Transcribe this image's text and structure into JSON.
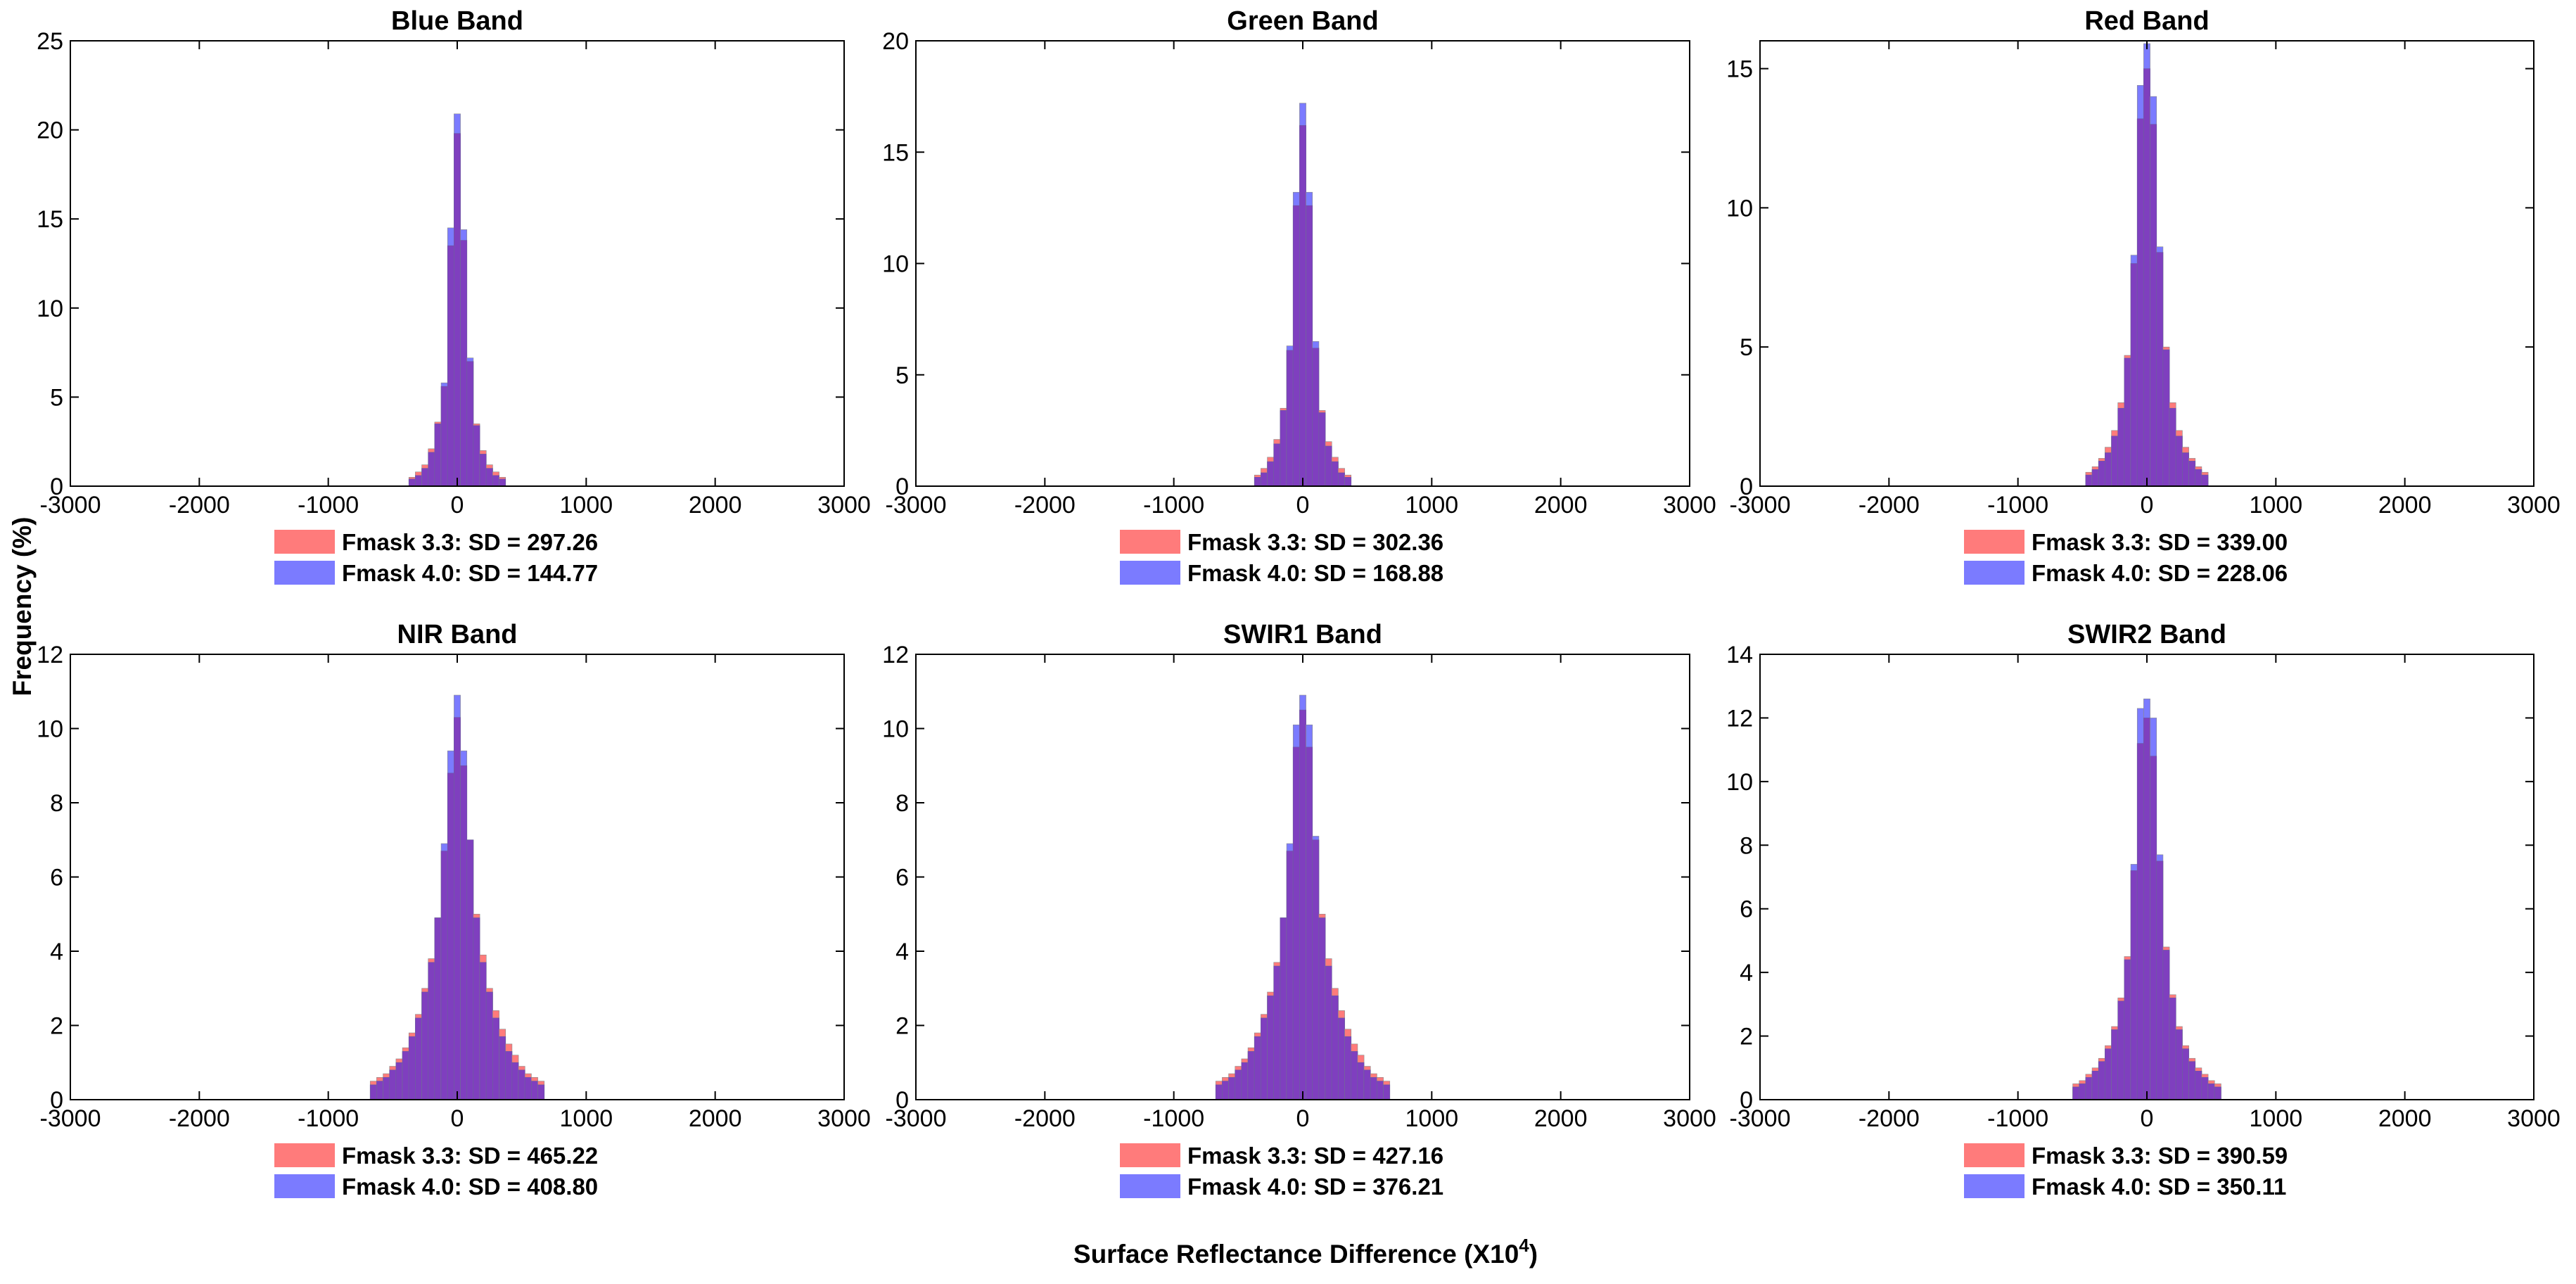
{
  "figure": {
    "ylabel": "Frequency (%)",
    "xlabel": "Surface Reflectance Difference (X10",
    "xlabel_sup": "4",
    "xlabel_close": ")"
  },
  "colors": {
    "fmask33": "#ff7b7b",
    "fmask40": "#7b7bff",
    "overlap": "#7f3fbf"
  },
  "chart_data": [
    {
      "type": "bar",
      "title": "Blue Band",
      "xlim": [
        -3000,
        3000
      ],
      "ylim": [
        0,
        25
      ],
      "xticks": [
        "-3000",
        "-2000",
        "-1000",
        "0",
        "1000",
        "2000",
        "3000"
      ],
      "yticks": [
        "0",
        "5",
        "10",
        "15",
        "20",
        "25"
      ],
      "legend": [
        "Fmask 3.3:  SD = 297.26",
        "Fmask 4.0:  SD = 144.77"
      ],
      "series": [
        {
          "name": "Fmask 3.3",
          "x": [
            -350,
            -300,
            -250,
            -200,
            -150,
            -100,
            -50,
            0,
            50,
            100,
            150,
            200,
            250,
            300,
            350
          ],
          "values": [
            0.5,
            0.8,
            1.2,
            2.1,
            3.6,
            5.6,
            13.5,
            19.8,
            13.8,
            7.0,
            3.5,
            2.0,
            1.2,
            0.8,
            0.5
          ]
        },
        {
          "name": "Fmask 4.0",
          "x": [
            -350,
            -300,
            -250,
            -200,
            -150,
            -100,
            -50,
            0,
            50,
            100,
            150,
            200,
            250,
            300,
            350
          ],
          "values": [
            0.4,
            0.6,
            1.0,
            1.9,
            3.5,
            5.8,
            14.5,
            20.9,
            14.4,
            7.2,
            3.4,
            1.8,
            1.0,
            0.6,
            0.4
          ]
        }
      ]
    },
    {
      "type": "bar",
      "title": "Green Band",
      "xlim": [
        -3000,
        3000
      ],
      "ylim": [
        0,
        20
      ],
      "xticks": [
        "-3000",
        "-2000",
        "-1000",
        "0",
        "1000",
        "2000",
        "3000"
      ],
      "yticks": [
        "0",
        "5",
        "10",
        "15",
        "20"
      ],
      "legend": [
        "Fmask 3.3:  SD = 302.36",
        "Fmask 4.0:  SD = 168.88"
      ],
      "series": [
        {
          "name": "Fmask 3.3",
          "x": [
            -350,
            -300,
            -250,
            -200,
            -150,
            -100,
            -50,
            0,
            50,
            100,
            150,
            200,
            250,
            300,
            350
          ],
          "values": [
            0.5,
            0.8,
            1.3,
            2.1,
            3.5,
            6.1,
            12.6,
            16.2,
            12.6,
            6.2,
            3.4,
            2.0,
            1.3,
            0.8,
            0.5
          ]
        },
        {
          "name": "Fmask 4.0",
          "x": [
            -350,
            -300,
            -250,
            -200,
            -150,
            -100,
            -50,
            0,
            50,
            100,
            150,
            200,
            250,
            300,
            350
          ],
          "values": [
            0.4,
            0.6,
            1.1,
            1.9,
            3.4,
            6.3,
            13.2,
            17.2,
            13.2,
            6.5,
            3.3,
            1.8,
            1.1,
            0.6,
            0.4
          ]
        }
      ]
    },
    {
      "type": "bar",
      "title": "Red Band",
      "xlim": [
        -3000,
        3000
      ],
      "ylim": [
        0,
        16
      ],
      "xticks": [
        "-3000",
        "-2000",
        "-1000",
        "0",
        "1000",
        "2000",
        "3000"
      ],
      "yticks": [
        "0",
        "5",
        "10",
        "15"
      ],
      "legend": [
        "Fmask 3.3:  SD = 339.00",
        "Fmask 4.0:  SD = 228.06"
      ],
      "series": [
        {
          "name": "Fmask 3.3",
          "x": [
            -450,
            -400,
            -350,
            -300,
            -250,
            -200,
            -150,
            -100,
            -50,
            0,
            50,
            100,
            150,
            200,
            250,
            300,
            350,
            400,
            450
          ],
          "values": [
            0.5,
            0.7,
            1.0,
            1.4,
            2.0,
            3.0,
            4.7,
            8.0,
            13.2,
            15.0,
            13.0,
            8.4,
            5.0,
            3.0,
            2.0,
            1.4,
            1.0,
            0.7,
            0.5
          ]
        },
        {
          "name": "Fmask 4.0",
          "x": [
            -450,
            -400,
            -350,
            -300,
            -250,
            -200,
            -150,
            -100,
            -50,
            0,
            50,
            100,
            150,
            200,
            250,
            300,
            350,
            400,
            450
          ],
          "values": [
            0.4,
            0.6,
            0.9,
            1.2,
            1.8,
            2.8,
            4.6,
            8.3,
            14.4,
            15.9,
            14.0,
            8.6,
            4.9,
            2.8,
            1.8,
            1.2,
            0.9,
            0.6,
            0.4
          ]
        }
      ]
    },
    {
      "type": "bar",
      "title": "NIR Band",
      "xlim": [
        -3000,
        3000
      ],
      "ylim": [
        0,
        12
      ],
      "xticks": [
        "-3000",
        "-2000",
        "-1000",
        "0",
        "1000",
        "2000",
        "3000"
      ],
      "yticks": [
        "0",
        "2",
        "4",
        "6",
        "8",
        "10",
        "12"
      ],
      "legend": [
        "Fmask 3.3:  SD = 465.22",
        "Fmask 4.0:  SD = 408.80"
      ],
      "series": [
        {
          "name": "Fmask 3.3",
          "x": [
            -650,
            -600,
            -550,
            -500,
            -450,
            -400,
            -350,
            -300,
            -250,
            -200,
            -150,
            -100,
            -50,
            0,
            50,
            100,
            150,
            200,
            250,
            300,
            350,
            400,
            450,
            500,
            550,
            600,
            650
          ],
          "values": [
            0.5,
            0.6,
            0.7,
            0.9,
            1.1,
            1.4,
            1.8,
            2.3,
            3.0,
            3.8,
            4.9,
            6.7,
            8.8,
            10.3,
            9.0,
            7.0,
            5.0,
            3.9,
            3.0,
            2.4,
            1.9,
            1.5,
            1.2,
            0.9,
            0.7,
            0.6,
            0.5
          ]
        },
        {
          "name": "Fmask 4.0",
          "x": [
            -650,
            -600,
            -550,
            -500,
            -450,
            -400,
            -350,
            -300,
            -250,
            -200,
            -150,
            -100,
            -50,
            0,
            50,
            100,
            150,
            200,
            250,
            300,
            350,
            400,
            450,
            500,
            550,
            600,
            650
          ],
          "values": [
            0.4,
            0.5,
            0.6,
            0.8,
            1.0,
            1.3,
            1.7,
            2.2,
            2.9,
            3.7,
            4.9,
            6.9,
            9.4,
            10.9,
            9.4,
            7.0,
            4.9,
            3.7,
            2.9,
            2.2,
            1.7,
            1.3,
            1.0,
            0.8,
            0.6,
            0.5,
            0.4
          ]
        }
      ]
    },
    {
      "type": "bar",
      "title": "SWIR1 Band",
      "xlim": [
        -3000,
        3000
      ],
      "ylim": [
        0,
        12
      ],
      "xticks": [
        "-3000",
        "-2000",
        "-1000",
        "0",
        "1000",
        "2000",
        "3000"
      ],
      "yticks": [
        "0",
        "2",
        "4",
        "6",
        "8",
        "10",
        "12"
      ],
      "legend": [
        "Fmask 3.3:  SD = 427.16",
        "Fmask 4.0:  SD = 376.21"
      ],
      "series": [
        {
          "name": "Fmask 3.3",
          "x": [
            -650,
            -600,
            -550,
            -500,
            -450,
            -400,
            -350,
            -300,
            -250,
            -200,
            -150,
            -100,
            -50,
            0,
            50,
            100,
            150,
            200,
            250,
            300,
            350,
            400,
            450,
            500,
            550,
            600,
            650
          ],
          "values": [
            0.5,
            0.6,
            0.7,
            0.9,
            1.1,
            1.4,
            1.8,
            2.3,
            2.9,
            3.7,
            4.9,
            6.7,
            9.5,
            10.5,
            9.5,
            7.0,
            5.0,
            3.8,
            3.0,
            2.4,
            1.9,
            1.5,
            1.2,
            0.9,
            0.7,
            0.6,
            0.5
          ]
        },
        {
          "name": "Fmask 4.0",
          "x": [
            -650,
            -600,
            -550,
            -500,
            -450,
            -400,
            -350,
            -300,
            -250,
            -200,
            -150,
            -100,
            -50,
            0,
            50,
            100,
            150,
            200,
            250,
            300,
            350,
            400,
            450,
            500,
            550,
            600,
            650
          ],
          "values": [
            0.4,
            0.5,
            0.6,
            0.8,
            1.0,
            1.3,
            1.7,
            2.2,
            2.8,
            3.6,
            4.9,
            6.9,
            10.1,
            10.9,
            10.1,
            7.1,
            4.9,
            3.6,
            2.8,
            2.2,
            1.7,
            1.3,
            1.0,
            0.8,
            0.6,
            0.5,
            0.4
          ]
        }
      ]
    },
    {
      "type": "bar",
      "title": "SWIR2 Band",
      "xlim": [
        -3000,
        3000
      ],
      "ylim": [
        0,
        14
      ],
      "xticks": [
        "-3000",
        "-2000",
        "-1000",
        "0",
        "1000",
        "2000",
        "3000"
      ],
      "yticks": [
        "0",
        "2",
        "4",
        "6",
        "8",
        "10",
        "12",
        "14"
      ],
      "legend": [
        "Fmask 3.3:  SD = 390.59",
        "Fmask 4.0:  SD = 350.11"
      ],
      "series": [
        {
          "name": "Fmask 3.3",
          "x": [
            -550,
            -500,
            -450,
            -400,
            -350,
            -300,
            -250,
            -200,
            -150,
            -100,
            -50,
            0,
            50,
            100,
            150,
            200,
            250,
            300,
            350,
            400,
            450,
            500,
            550
          ],
          "values": [
            0.5,
            0.6,
            0.8,
            1.0,
            1.3,
            1.7,
            2.3,
            3.2,
            4.5,
            7.2,
            11.2,
            12.0,
            10.8,
            7.5,
            4.8,
            3.3,
            2.3,
            1.7,
            1.3,
            1.0,
            0.8,
            0.6,
            0.5
          ]
        },
        {
          "name": "Fmask 4.0",
          "x": [
            -550,
            -500,
            -450,
            -400,
            -350,
            -300,
            -250,
            -200,
            -150,
            -100,
            -50,
            0,
            50,
            100,
            150,
            200,
            250,
            300,
            350,
            400,
            450,
            500,
            550
          ],
          "values": [
            0.4,
            0.5,
            0.7,
            0.9,
            1.2,
            1.6,
            2.2,
            3.1,
            4.4,
            7.4,
            12.3,
            12.6,
            12.0,
            7.7,
            4.7,
            3.2,
            2.2,
            1.6,
            1.2,
            0.9,
            0.7,
            0.5,
            0.4
          ]
        }
      ]
    }
  ]
}
